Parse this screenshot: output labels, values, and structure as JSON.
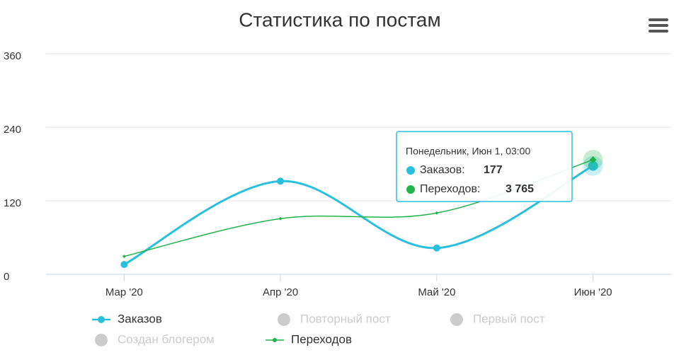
{
  "chart_data": {
    "type": "line",
    "title": "Статистика по постам",
    "categories": [
      "Мар '20",
      "Апр '20",
      "Май '20",
      "Июн '20"
    ],
    "series": [
      {
        "name": "Заказов",
        "color": "#29c0e0",
        "values": [
          16,
          152,
          43,
          177
        ],
        "visible": true
      },
      {
        "name": "Повторный пост",
        "color": "#cccccc",
        "values": [
          null,
          null,
          null,
          null
        ],
        "visible": false
      },
      {
        "name": "Первый пост",
        "color": "#cccccc",
        "values": [
          null,
          null,
          null,
          null
        ],
        "visible": false
      },
      {
        "name": "Создан блогером",
        "color": "#cccccc",
        "values": [
          null,
          null,
          null,
          null
        ],
        "visible": false
      },
      {
        "name": "Переходов",
        "color": "#22b34a",
        "values": [
          590,
          1830,
          2015,
          3765
        ],
        "value_labels": [
          null,
          null,
          null,
          "3 765"
        ],
        "axis": "y2",
        "visible": true
      }
    ],
    "ylim": [
      0,
      360
    ],
    "yticks": [
      0,
      120,
      240,
      360
    ],
    "y2lim": [
      0,
      7250
    ],
    "grid": true,
    "tooltip": {
      "title": "Понедельник, Июн 1, 03:00",
      "rows": [
        "Заказов:",
        "Переходов:"
      ]
    }
  }
}
